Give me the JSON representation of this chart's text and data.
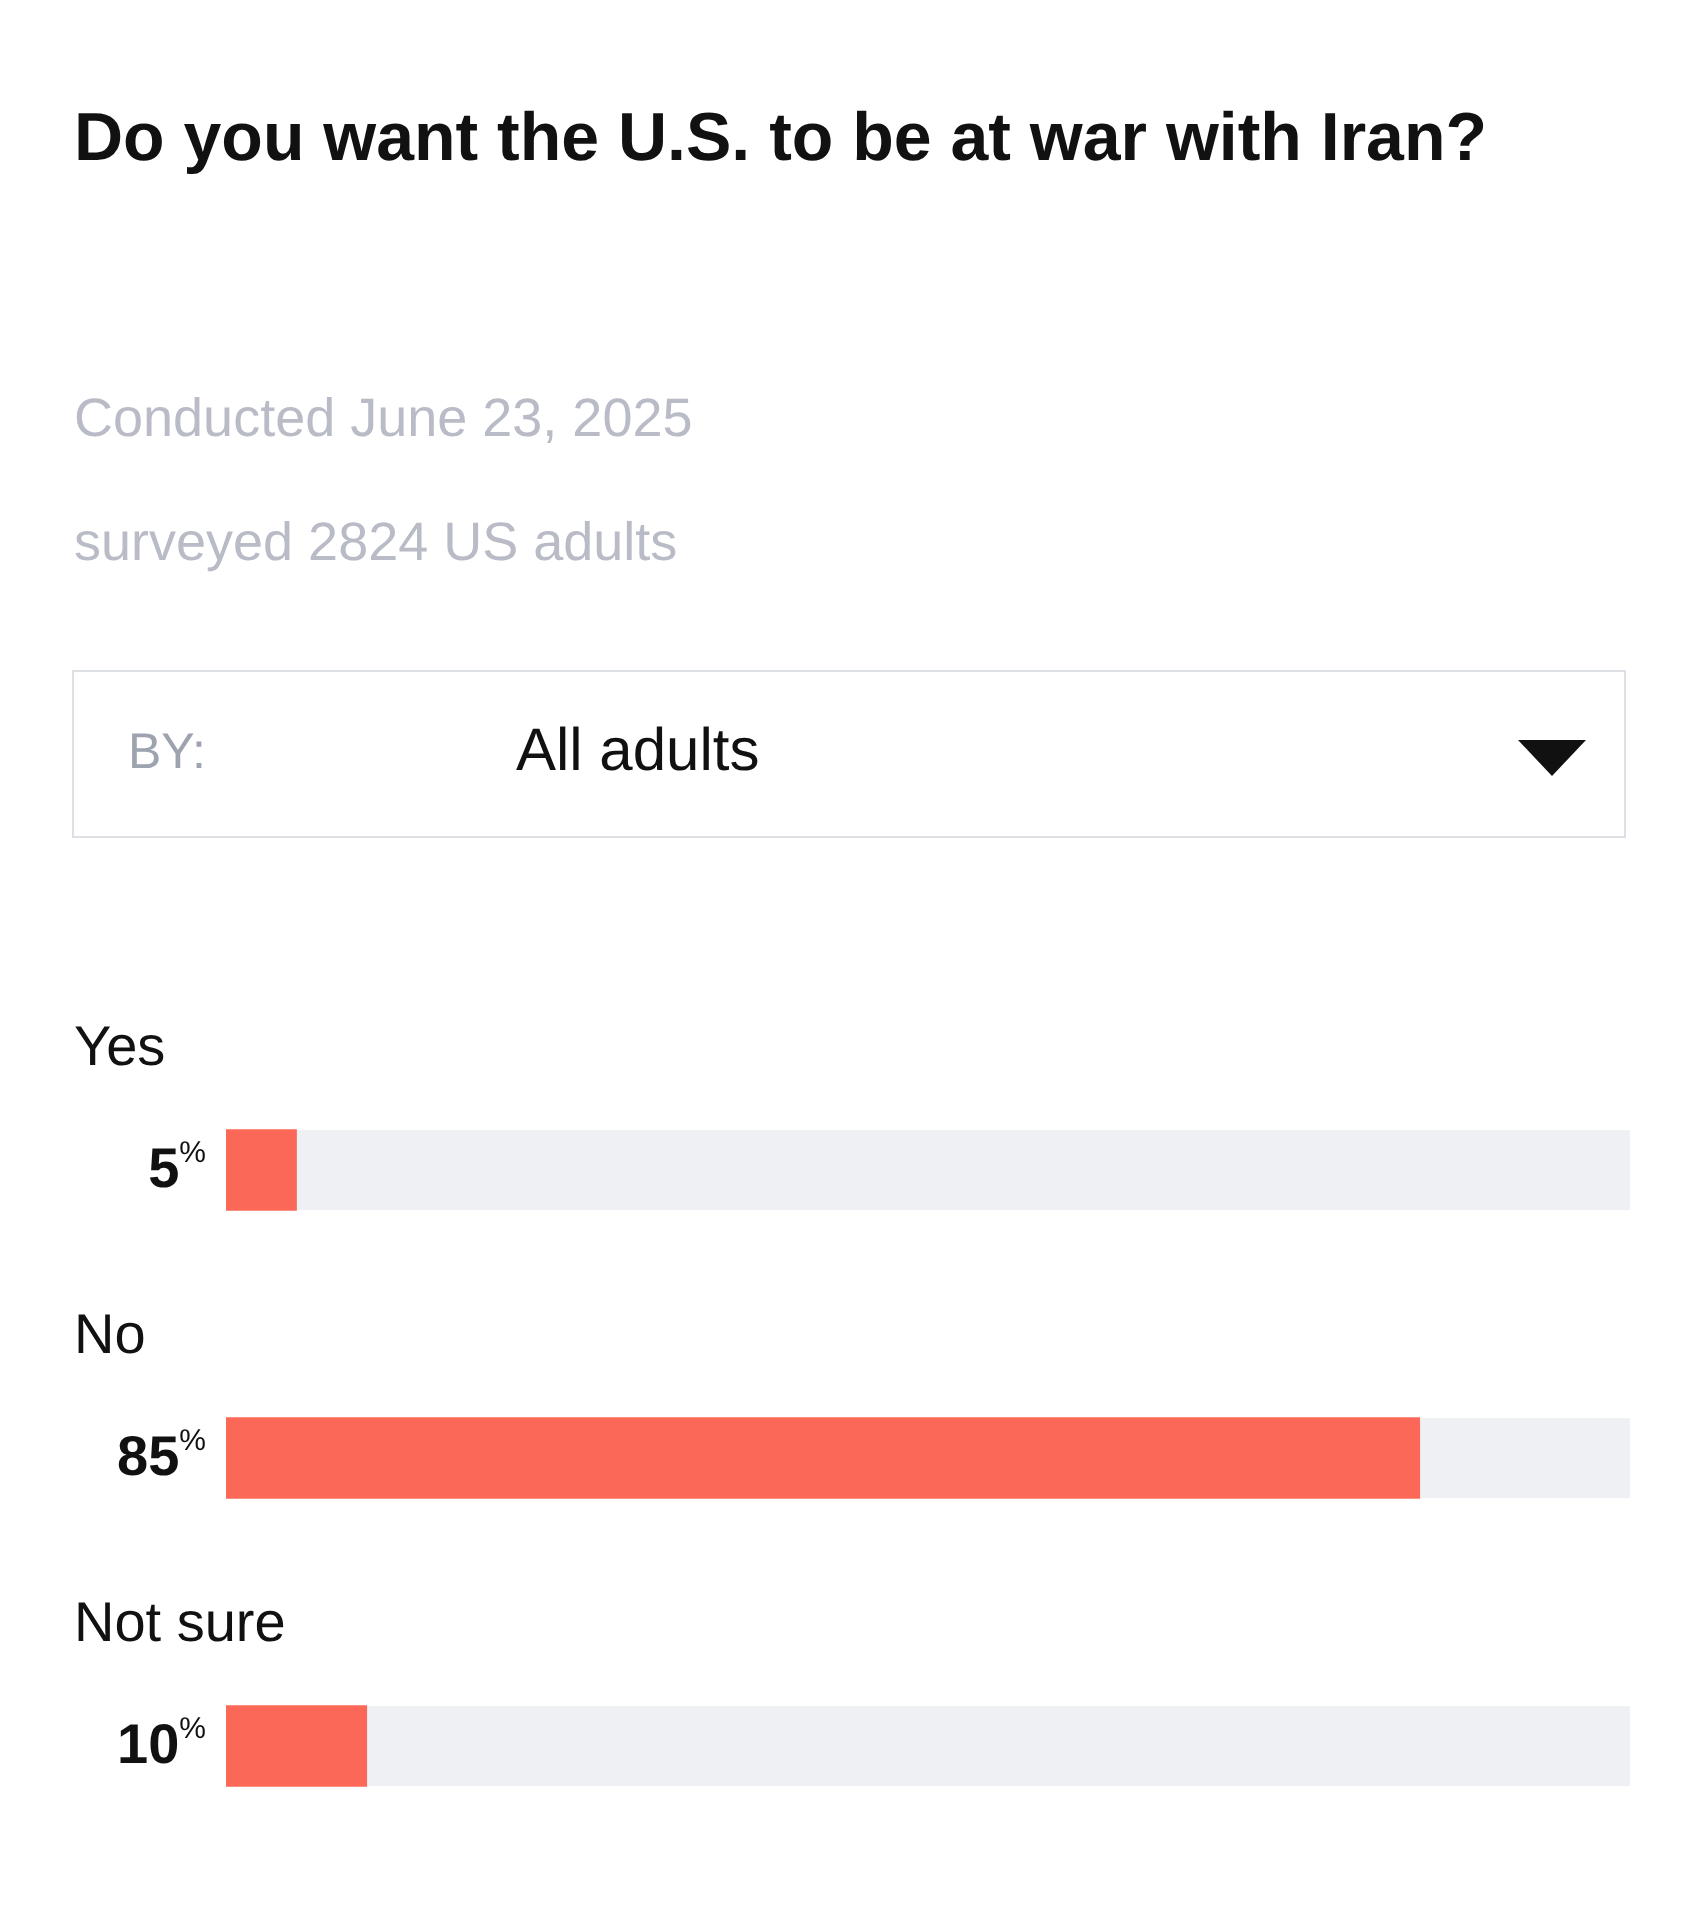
{
  "chart_data": {
    "type": "bar",
    "orientation": "horizontal",
    "title": "Do you want the U.S. to be at war with Iran?",
    "subtitle": "Conducted June 23, 2025",
    "annotations": [
      "surveyed 2824 US adults",
      "BY:",
      "All adults"
    ],
    "categories": [
      "Yes",
      "No",
      "Not sure"
    ],
    "values": [
      5,
      85,
      10
    ],
    "value_labels": [
      "5$^{%}$",
      "85$^{%}$",
      "10$^{%}$"
    ],
    "color": "#fb6857",
    "xlim": [
      0,
      100
    ],
    "tick_labels": false
  }
}
